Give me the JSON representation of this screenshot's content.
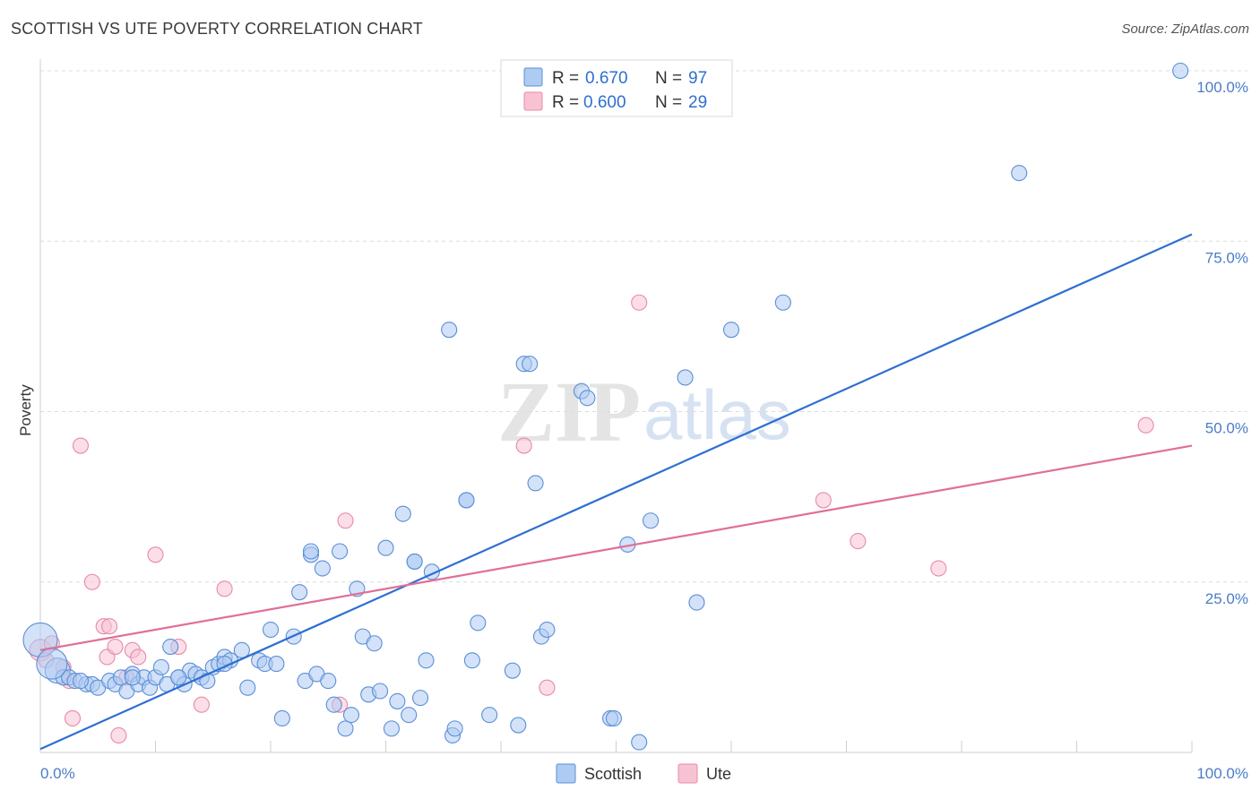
{
  "title": "SCOTTISH VS UTE POVERTY CORRELATION CHART",
  "source": "Source: ZipAtlas.com",
  "watermark": {
    "zip": "ZIP",
    "atlas": "atlas"
  },
  "colors": {
    "scottish_fill": "#aecbf2",
    "scottish_stroke": "#5b8fd6",
    "scottish_line": "#2e6fd1",
    "ute_fill": "#f7c3d3",
    "ute_stroke": "#e88aa8",
    "ute_line": "#e06f98",
    "tick_text": "#4a7cc7"
  },
  "legend": {
    "rows": [
      {
        "r_label": "R =",
        "r_value": "0.670",
        "n_label": "N =",
        "n_value": "97"
      },
      {
        "r_label": "R =",
        "r_value": "0.600",
        "n_label": "N =",
        "n_value": "29"
      }
    ]
  },
  "chart_data": {
    "type": "scatter",
    "xlabel": "",
    "ylabel": "Poverty",
    "xlim": [
      0,
      100
    ],
    "ylim": [
      0,
      100
    ],
    "x_tick_labels": [
      "0.0%",
      "100.0%"
    ],
    "y_tick_labels": [
      "100.0%",
      "75.0%",
      "50.0%",
      "25.0%"
    ],
    "y_ticks": [
      100,
      75,
      50,
      25
    ],
    "grid": true,
    "legend_position": "top-center",
    "bottom_legend": [
      "Scottish",
      "Ute"
    ],
    "series": [
      {
        "name": "Scottish",
        "r": 0.67,
        "n": 97,
        "trend": {
          "x": [
            0,
            100
          ],
          "y": [
            0.5,
            76
          ]
        },
        "points": [
          [
            0,
            16.5
          ],
          [
            1.5,
            12
          ],
          [
            2,
            11
          ],
          [
            2.5,
            11
          ],
          [
            3,
            10.5
          ],
          [
            4,
            10
          ],
          [
            4.5,
            10
          ],
          [
            5,
            9.5
          ],
          [
            6,
            10.5
          ],
          [
            6.5,
            10
          ],
          [
            7,
            11
          ],
          [
            7.5,
            9
          ],
          [
            8,
            11.5
          ],
          [
            8.5,
            10
          ],
          [
            9,
            11
          ],
          [
            9.5,
            9.5
          ],
          [
            10,
            11
          ],
          [
            10.5,
            12.5
          ],
          [
            11,
            10
          ],
          [
            11.3,
            15.5
          ],
          [
            12,
            11
          ],
          [
            12.5,
            10
          ],
          [
            13,
            12
          ],
          [
            13.5,
            11.5
          ],
          [
            14,
            11
          ],
          [
            14.5,
            10.5
          ],
          [
            15,
            12.5
          ],
          [
            15.5,
            13
          ],
          [
            16,
            14
          ],
          [
            16.5,
            13.5
          ],
          [
            17.5,
            15
          ],
          [
            18,
            9.5
          ],
          [
            19,
            13.5
          ],
          [
            19.5,
            13
          ],
          [
            20,
            18
          ],
          [
            20.5,
            13
          ],
          [
            21,
            5
          ],
          [
            22,
            17
          ],
          [
            22.5,
            23.5
          ],
          [
            23,
            10.5
          ],
          [
            23.5,
            29
          ],
          [
            24,
            11.5
          ],
          [
            24.5,
            27
          ],
          [
            25,
            10.5
          ],
          [
            25.5,
            7
          ],
          [
            26,
            29.5
          ],
          [
            26.5,
            3.5
          ],
          [
            27,
            5.5
          ],
          [
            27.5,
            24
          ],
          [
            28,
            17
          ],
          [
            28.5,
            8.5
          ],
          [
            29,
            16
          ],
          [
            29.5,
            9
          ],
          [
            30,
            30
          ],
          [
            30.5,
            3.5
          ],
          [
            31,
            7.5
          ],
          [
            31.5,
            35
          ],
          [
            32,
            5.5
          ],
          [
            32.5,
            28
          ],
          [
            33,
            8
          ],
          [
            33.5,
            13.5
          ],
          [
            34,
            26.5
          ],
          [
            35.5,
            62
          ],
          [
            35.8,
            2.5
          ],
          [
            36,
            3.5
          ],
          [
            37,
            37
          ],
          [
            37.5,
            13.5
          ],
          [
            38,
            19
          ],
          [
            39,
            5.5
          ],
          [
            41,
            12
          ],
          [
            41.5,
            4
          ],
          [
            42,
            57
          ],
          [
            42.5,
            57
          ],
          [
            43,
            39.5
          ],
          [
            43.5,
            17
          ],
          [
            44,
            18
          ],
          [
            47,
            53
          ],
          [
            47.5,
            52
          ],
          [
            49.5,
            5
          ],
          [
            49.8,
            5
          ],
          [
            51,
            30.5
          ],
          [
            52,
            1.5
          ],
          [
            53,
            34
          ],
          [
            56,
            55
          ],
          [
            57,
            22
          ],
          [
            60,
            62
          ],
          [
            64.5,
            66
          ],
          [
            85,
            85
          ],
          [
            99,
            100
          ],
          [
            1,
            13
          ],
          [
            3.5,
            10.5
          ],
          [
            8,
            11
          ],
          [
            12,
            11
          ],
          [
            16,
            13
          ],
          [
            23.5,
            29.5
          ],
          [
            32.5,
            28
          ],
          [
            37,
            37
          ]
        ]
      },
      {
        "name": "Ute",
        "r": 0.6,
        "n": 29,
        "trend": {
          "x": [
            0,
            100
          ],
          "y": [
            15,
            45
          ]
        },
        "points": [
          [
            0,
            15
          ],
          [
            0.5,
            13.5
          ],
          [
            1,
            16
          ],
          [
            2,
            12.5
          ],
          [
            2.5,
            10.5
          ],
          [
            2.8,
            5
          ],
          [
            3.5,
            45
          ],
          [
            4.5,
            25
          ],
          [
            5.5,
            18.5
          ],
          [
            5.8,
            14
          ],
          [
            6,
            18.5
          ],
          [
            6.5,
            15.5
          ],
          [
            6.8,
            2.5
          ],
          [
            7.5,
            11
          ],
          [
            8,
            15
          ],
          [
            8.5,
            14
          ],
          [
            10,
            29
          ],
          [
            12,
            15.5
          ],
          [
            14,
            7
          ],
          [
            16,
            24
          ],
          [
            26,
            7
          ],
          [
            26.5,
            34
          ],
          [
            42,
            45
          ],
          [
            44,
            9.5
          ],
          [
            52,
            66
          ],
          [
            68,
            37
          ],
          [
            71,
            31
          ],
          [
            78,
            27
          ],
          [
            96,
            48
          ]
        ]
      }
    ]
  }
}
